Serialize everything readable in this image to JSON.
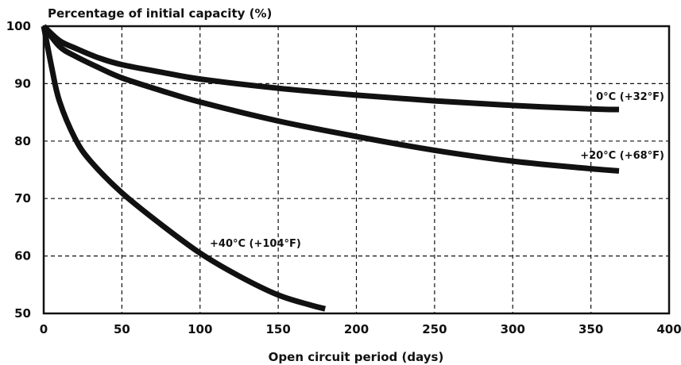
{
  "chart_data": {
    "type": "line",
    "ylabel": "Percentage of initial capacity (%)",
    "xlabel": "Open circuit period (days)",
    "xlim": [
      0,
      400
    ],
    "ylim": [
      50,
      100
    ],
    "x_ticks": [
      0,
      50,
      100,
      150,
      200,
      250,
      300,
      350,
      400
    ],
    "y_ticks": [
      50,
      60,
      70,
      80,
      90,
      100
    ],
    "grid": true,
    "series": [
      {
        "name": "0°C (+32°F)",
        "x": [
          0,
          10,
          20,
          35,
          50,
          75,
          100,
          150,
          200,
          250,
          300,
          350,
          368
        ],
        "y": [
          100,
          97.5,
          96.2,
          94.5,
          93.3,
          92,
          90.8,
          89.2,
          88,
          87,
          86.2,
          85.6,
          85.5
        ]
      },
      {
        "name": "+20°C (+68°F)",
        "x": [
          0,
          10,
          20,
          35,
          50,
          75,
          100,
          150,
          200,
          250,
          300,
          350,
          368
        ],
        "y": [
          100,
          96.5,
          94.8,
          92.8,
          91,
          88.8,
          86.8,
          83.5,
          80.8,
          78.4,
          76.5,
          75.2,
          74.8
        ]
      },
      {
        "name": "+40°C (+104°F)",
        "x": [
          0,
          5,
          10,
          20,
          30,
          50,
          75,
          100,
          125,
          150,
          170,
          180
        ],
        "y": [
          100,
          93,
          87,
          80.5,
          76.5,
          71,
          65.5,
          60.5,
          56.5,
          53.2,
          51.5,
          50.8
        ]
      }
    ]
  }
}
